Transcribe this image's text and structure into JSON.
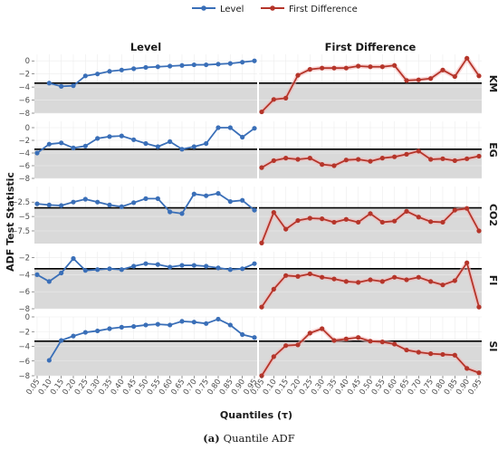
{
  "chart_data": {
    "type": "line",
    "legend": {
      "position": "top",
      "entries": [
        {
          "label": "Level",
          "color": "#3a6fb8"
        },
        {
          "label": "First Difference",
          "color": "#b5352a"
        }
      ]
    },
    "column_titles": [
      "Level",
      "First Difference"
    ],
    "row_labels": [
      "KM",
      "EG",
      "CO2",
      "FI",
      "SI"
    ],
    "xlabel": "Quantiles (τ)",
    "ylabel": "ADF Test Statistic",
    "caption_prefix": "(a)",
    "caption_text": "Quantile ADF",
    "x": [
      0.05,
      0.1,
      0.15,
      0.2,
      0.25,
      0.3,
      0.35,
      0.4,
      0.45,
      0.5,
      0.55,
      0.6,
      0.65,
      0.7,
      0.75,
      0.8,
      0.85,
      0.9,
      0.95
    ],
    "x_tick_labels": [
      "0.05",
      "0.10",
      "0.15",
      "0.20",
      "0.25",
      "0.30",
      "0.35",
      "0.40",
      "0.45",
      "0.50",
      "0.55",
      "0.60",
      "0.65",
      "0.70",
      "0.75",
      "0.80",
      "0.85",
      "0.90",
      "0.95"
    ],
    "shading": "critical-value region below threshold",
    "rows": [
      {
        "label": "KM",
        "ylim": [
          -8,
          1
        ],
        "yticks": [
          0,
          -2,
          -4,
          -6,
          -8
        ],
        "critical_value": -3.4,
        "series": [
          {
            "panel": "Level",
            "values": [
              null,
              -3.4,
              -3.9,
              -3.8,
              -2.3,
              -2.0,
              -1.6,
              -1.4,
              -1.2,
              -1.0,
              -0.9,
              -0.8,
              -0.7,
              -0.6,
              -0.6,
              -0.5,
              -0.4,
              -0.2,
              0.0
            ]
          },
          {
            "panel": "First Difference",
            "values": [
              -7.8,
              -5.9,
              -5.7,
              -2.2,
              -1.3,
              -1.1,
              -1.1,
              -1.1,
              -0.8,
              -0.9,
              -0.9,
              -0.7,
              -3.0,
              -2.9,
              -2.7,
              -1.4,
              -2.4,
              0.4,
              -2.3
            ]
          }
        ]
      },
      {
        "label": "EG",
        "ylim": [
          -8,
          1
        ],
        "yticks": [
          0,
          -2,
          -4,
          -6,
          -8
        ],
        "critical_value": -3.4,
        "series": [
          {
            "panel": "Level",
            "values": [
              -4.0,
              -2.6,
              -2.4,
              -3.2,
              -2.9,
              -1.7,
              -1.4,
              -1.3,
              -1.9,
              -2.5,
              -3.0,
              -2.2,
              -3.4,
              -3.0,
              -2.5,
              0.0,
              0.0,
              -1.5,
              -0.1
            ]
          },
          {
            "panel": "First Difference",
            "values": [
              -6.3,
              -5.2,
              -4.8,
              -5.0,
              -4.8,
              -5.8,
              -6.0,
              -5.1,
              -5.0,
              -5.3,
              -4.8,
              -4.6,
              -4.2,
              -3.7,
              -5.0,
              -4.9,
              -5.2,
              -4.9,
              -4.5
            ]
          }
        ]
      },
      {
        "label": "CO2",
        "ylim": [
          -9.7,
          0.2
        ],
        "yticks": [
          -2.5,
          -5.0,
          -7.5
        ],
        "critical_value": -3.5,
        "series": [
          {
            "panel": "Level",
            "values": [
              -2.8,
              -3.0,
              -3.1,
              -2.5,
              -2.0,
              -2.5,
              -3.0,
              -3.3,
              -2.6,
              -1.9,
              -1.9,
              -4.2,
              -4.5,
              -1.1,
              -1.4,
              -1.0,
              -2.4,
              -2.2,
              -3.9
            ]
          },
          {
            "panel": "First Difference",
            "values": [
              -9.6,
              -4.3,
              -7.2,
              -5.7,
              -5.3,
              -5.4,
              -6.0,
              -5.5,
              -6.0,
              -4.5,
              -6.0,
              -5.8,
              -4.1,
              -5.1,
              -5.9,
              -6.0,
              -3.9,
              -3.6,
              -7.5
            ]
          }
        ]
      },
      {
        "label": "FI",
        "ylim": [
          -8,
          -1.3
        ],
        "yticks": [
          -2,
          -4,
          -6,
          -8
        ],
        "critical_value": -3.3,
        "series": [
          {
            "panel": "Level",
            "values": [
              -4.0,
              -4.8,
              -3.8,
              -2.1,
              -3.5,
              -3.4,
              -3.3,
              -3.4,
              -3.0,
              -2.7,
              -2.8,
              -3.1,
              -2.9,
              -2.9,
              -3.0,
              -3.2,
              -3.4,
              -3.3,
              -2.7
            ]
          },
          {
            "panel": "First Difference",
            "values": [
              -7.8,
              -5.7,
              -4.1,
              -4.2,
              -3.9,
              -4.3,
              -4.5,
              -4.8,
              -4.9,
              -4.6,
              -4.8,
              -4.3,
              -4.6,
              -4.3,
              -4.8,
              -5.2,
              -4.7,
              -2.6,
              -7.8
            ]
          }
        ]
      },
      {
        "label": "SI",
        "ylim": [
          -8,
          0
        ],
        "yticks": [
          0,
          -2,
          -4,
          -6,
          -8
        ],
        "critical_value": -3.3,
        "series": [
          {
            "panel": "Level",
            "values": [
              null,
              -5.9,
              -3.2,
              -2.6,
              -2.1,
              -1.9,
              -1.6,
              -1.4,
              -1.3,
              -1.1,
              -1.0,
              -1.1,
              -0.6,
              -0.7,
              -0.9,
              -0.3,
              -1.1,
              -2.4,
              -2.8
            ]
          },
          {
            "panel": "First Difference",
            "values": [
              -8.0,
              -5.4,
              -3.9,
              -3.8,
              -2.2,
              -1.6,
              -3.2,
              -3.0,
              -2.8,
              -3.3,
              -3.4,
              -3.7,
              -4.5,
              -4.8,
              -5.0,
              -5.1,
              -5.2,
              -7.0,
              -7.6
            ]
          }
        ]
      }
    ]
  }
}
